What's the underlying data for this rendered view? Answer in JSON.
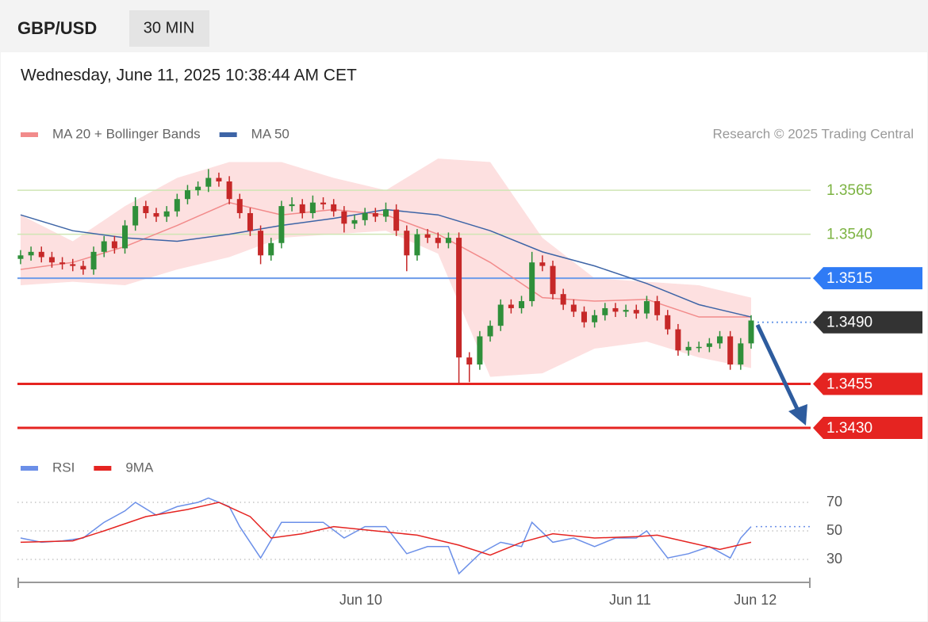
{
  "header": {
    "symbol": "GBP/USD",
    "timeframe": "30 MIN",
    "timestamp": "Wednesday, June 11, 2025 10:38:44 AM CET",
    "copyright": "Research © 2025 Trading Central"
  },
  "chart_data": [
    {
      "type": "candlestick",
      "up_color": "#2f8f3a",
      "down_color": "#c62828",
      "xlim": [
        -0.3,
        75.7
      ],
      "ylim": [
        1.3421,
        1.3588
      ],
      "ohlc": [
        [
          1.3526,
          1.3531,
          1.3523,
          1.3528
        ],
        [
          1.3528,
          1.3533,
          1.3525,
          1.353
        ],
        [
          1.353,
          1.3533,
          1.3524,
          1.3527
        ],
        [
          1.3527,
          1.353,
          1.3521,
          1.3524
        ],
        [
          1.3524,
          1.3527,
          1.352,
          1.3523
        ],
        [
          1.3523,
          1.3526,
          1.3519,
          1.3522
        ],
        [
          1.3522,
          1.3525,
          1.3517,
          1.352
        ],
        [
          1.352,
          1.3533,
          1.3517,
          1.353
        ],
        [
          1.353,
          1.3539,
          1.3527,
          1.3536
        ],
        [
          1.3536,
          1.3539,
          1.3529,
          1.3532
        ],
        [
          1.3532,
          1.3548,
          1.3529,
          1.3545
        ],
        [
          1.3545,
          1.3561,
          1.3542,
          1.3556
        ],
        [
          1.3556,
          1.3559,
          1.3549,
          1.3552
        ],
        [
          1.3552,
          1.3555,
          1.3547,
          1.355
        ],
        [
          1.355,
          1.3556,
          1.3547,
          1.3553
        ],
        [
          1.3553,
          1.3563,
          1.355,
          1.356
        ],
        [
          1.356,
          1.3568,
          1.3557,
          1.3565
        ],
        [
          1.3565,
          1.357,
          1.3562,
          1.3567
        ],
        [
          1.3567,
          1.3577,
          1.3564,
          1.3572
        ],
        [
          1.3572,
          1.3575,
          1.3567,
          1.357
        ],
        [
          1.357,
          1.3573,
          1.3557,
          1.356
        ],
        [
          1.356,
          1.3563,
          1.3549,
          1.3552
        ],
        [
          1.3552,
          1.3555,
          1.3539,
          1.3542
        ],
        [
          1.3542,
          1.3545,
          1.3523,
          1.3528
        ],
        [
          1.3528,
          1.3538,
          1.3525,
          1.3535
        ],
        [
          1.3535,
          1.3559,
          1.3532,
          1.3556
        ],
        [
          1.3556,
          1.3561,
          1.3553,
          1.3557
        ],
        [
          1.3557,
          1.356,
          1.3549,
          1.3552
        ],
        [
          1.3552,
          1.3562,
          1.3549,
          1.3558
        ],
        [
          1.3558,
          1.3561,
          1.3554,
          1.3557
        ],
        [
          1.3557,
          1.356,
          1.355,
          1.3553
        ],
        [
          1.3553,
          1.3556,
          1.3541,
          1.3546
        ],
        [
          1.3546,
          1.3551,
          1.3543,
          1.3548
        ],
        [
          1.3548,
          1.3555,
          1.3545,
          1.3552
        ],
        [
          1.3552,
          1.3555,
          1.3547,
          1.355
        ],
        [
          1.355,
          1.3558,
          1.3547,
          1.3554
        ],
        [
          1.3554,
          1.3557,
          1.3539,
          1.3542
        ],
        [
          1.3542,
          1.3545,
          1.3519,
          1.3528
        ],
        [
          1.3528,
          1.3543,
          1.3525,
          1.354
        ],
        [
          1.354,
          1.3543,
          1.3535,
          1.3538
        ],
        [
          1.3538,
          1.3541,
          1.3532,
          1.3535
        ],
        [
          1.3535,
          1.3541,
          1.3532,
          1.3538
        ],
        [
          1.3538,
          1.3541,
          1.3455,
          1.347
        ],
        [
          1.347,
          1.3473,
          1.3456,
          1.3466
        ],
        [
          1.3466,
          1.3485,
          1.3463,
          1.3482
        ],
        [
          1.3482,
          1.3491,
          1.3479,
          1.3488
        ],
        [
          1.3488,
          1.3503,
          1.3485,
          1.35
        ],
        [
          1.35,
          1.3503,
          1.3495,
          1.3498
        ],
        [
          1.3498,
          1.3505,
          1.3495,
          1.3502
        ],
        [
          1.3502,
          1.353,
          1.3499,
          1.3524
        ],
        [
          1.3524,
          1.3528,
          1.3519,
          1.3522
        ],
        [
          1.3522,
          1.3525,
          1.3503,
          1.3506
        ],
        [
          1.3506,
          1.3509,
          1.3497,
          1.35
        ],
        [
          1.35,
          1.3503,
          1.3493,
          1.3496
        ],
        [
          1.3496,
          1.3499,
          1.3487,
          1.349
        ],
        [
          1.349,
          1.3497,
          1.3487,
          1.3494
        ],
        [
          1.3494,
          1.3501,
          1.3491,
          1.3498
        ],
        [
          1.3498,
          1.3501,
          1.3493,
          1.3496
        ],
        [
          1.3496,
          1.35,
          1.3493,
          1.3497
        ],
        [
          1.3497,
          1.35,
          1.3492,
          1.3495
        ],
        [
          1.3495,
          1.3505,
          1.3492,
          1.3502
        ],
        [
          1.3502,
          1.3505,
          1.3491,
          1.3494
        ],
        [
          1.3494,
          1.3497,
          1.3483,
          1.3486
        ],
        [
          1.3486,
          1.3489,
          1.3471,
          1.3474
        ],
        [
          1.3474,
          1.3479,
          1.3471,
          1.3476
        ],
        [
          1.3476,
          1.3479,
          1.3473,
          1.3476
        ],
        [
          1.3476,
          1.3481,
          1.3473,
          1.3478
        ],
        [
          1.3478,
          1.3485,
          1.3475,
          1.3482
        ],
        [
          1.3482,
          1.3485,
          1.3463,
          1.3466
        ],
        [
          1.3466,
          1.3481,
          1.3463,
          1.3478
        ],
        [
          1.3478,
          1.3494,
          1.3475,
          1.3491
        ]
      ],
      "series": [
        {
          "name": "MA 20 + Bollinger Bands",
          "color": "#f28b8b",
          "band_color": "#fde0e0",
          "x": [
            0,
            5,
            10,
            15,
            20,
            25,
            30,
            35,
            40,
            45,
            50,
            55,
            60,
            65,
            70
          ],
          "values": [
            1.352,
            1.3524,
            1.3533,
            1.3545,
            1.3558,
            1.3551,
            1.3554,
            1.3551,
            1.354,
            1.3524,
            1.3504,
            1.3502,
            1.3503,
            1.3493,
            1.3493
          ],
          "upper": [
            1.3551,
            1.3536,
            1.3556,
            1.3572,
            1.3581,
            1.3581,
            1.3572,
            1.3565,
            1.3583,
            1.3581,
            1.3538,
            1.3515,
            1.3513,
            1.3511,
            1.3504
          ],
          "lower": [
            1.3511,
            1.3513,
            1.3511,
            1.352,
            1.3527,
            1.3538,
            1.354,
            1.3542,
            1.3529,
            1.3459,
            1.3461,
            1.3475,
            1.3479,
            1.347,
            1.3464
          ]
        },
        {
          "name": "MA 50",
          "color": "#3d64a6",
          "x": [
            0,
            5,
            10,
            15,
            20,
            25,
            30,
            35,
            40,
            45,
            50,
            55,
            60,
            65,
            70
          ],
          "values": [
            1.3551,
            1.3542,
            1.3538,
            1.3536,
            1.354,
            1.3545,
            1.3549,
            1.3554,
            1.3551,
            1.3542,
            1.353,
            1.3522,
            1.3512,
            1.35,
            1.3493
          ]
        }
      ],
      "levels": [
        {
          "value": 1.3565,
          "color": "#7cb342",
          "line_color": "#cfe5b4",
          "tag": false
        },
        {
          "value": 1.354,
          "label": "1.3540",
          "color": "#7cb342",
          "line_color": "#cfe5b4",
          "tag": false
        },
        {
          "value": 1.3515,
          "color": "#2f7bf5",
          "line_color": "#6d9be9",
          "tag": true
        },
        {
          "value": 1.349,
          "label": "1.3490",
          "color": "#333333",
          "line_color": "#6d9be9",
          "tag": true,
          "dotted": true
        },
        {
          "value": 1.3455,
          "color": "#e52421",
          "line_color": "#e52421",
          "tag": true
        },
        {
          "value": 1.343,
          "label": "1.3430",
          "color": "#e52421",
          "line_color": "#e52421",
          "tag": true
        }
      ]
    },
    {
      "type": "line",
      "xlim": [
        -0.3,
        75.7
      ],
      "ylim": [
        17,
        80
      ],
      "yticks": [
        30,
        50,
        70
      ],
      "xticks": [
        {
          "value": 32.6,
          "label": "Jun 10"
        },
        {
          "value": 58.4,
          "label": "Jun 11"
        },
        {
          "value": 70.4,
          "label": "Jun 12"
        }
      ],
      "series": [
        {
          "name": "RSI",
          "color": "#6b8fe8",
          "x": [
            0,
            2,
            4,
            6,
            8,
            10,
            11,
            13,
            15,
            17,
            18,
            20,
            21,
            23,
            25,
            27,
            29,
            31,
            33,
            35,
            37,
            39,
            41,
            42,
            44,
            46,
            48,
            49,
            51,
            53,
            55,
            57,
            59,
            60,
            62,
            64,
            66,
            68,
            69,
            70
          ],
          "values": [
            45,
            42,
            43,
            45,
            56,
            64,
            70,
            61,
            67,
            70,
            73,
            67,
            53,
            31,
            56,
            56,
            56,
            45,
            53,
            53,
            34,
            39,
            39,
            20,
            34,
            42,
            39,
            56,
            42,
            45,
            39,
            45,
            45,
            50,
            31,
            34,
            39,
            31,
            45,
            53
          ]
        },
        {
          "name": "9MA",
          "color": "#e52421",
          "x": [
            0,
            5,
            8,
            12,
            16,
            19,
            22,
            24,
            27,
            30,
            34,
            38,
            42,
            45,
            48,
            51,
            55,
            59,
            61,
            64,
            67,
            70
          ],
          "values": [
            42,
            43,
            50,
            60,
            65,
            70,
            60,
            45,
            48,
            53,
            50,
            47,
            40,
            33,
            42,
            48,
            45,
            46,
            47,
            42,
            37,
            42
          ]
        }
      ]
    }
  ]
}
